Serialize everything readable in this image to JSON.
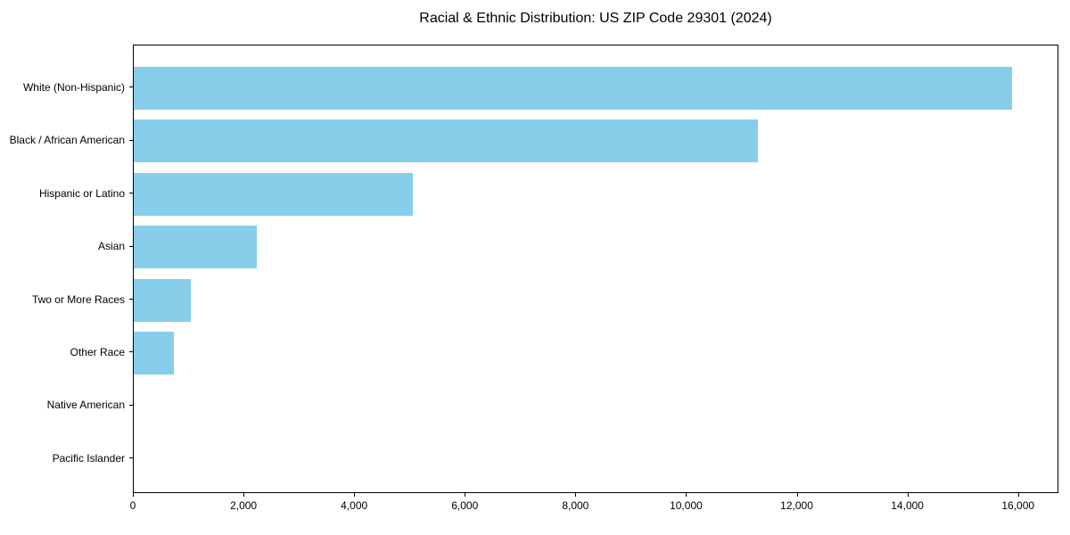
{
  "page": {
    "background_color": "#ffffff",
    "text_color": "#000000"
  },
  "chart_data": {
    "type": "bar",
    "orientation": "horizontal",
    "title": "Racial & Ethnic Distribution: US ZIP Code 29301 (2024)",
    "xlabel": "",
    "ylabel": "",
    "categories": [
      "White (Non-Hispanic)",
      "Black / African American",
      "Hispanic or Latino",
      "Asian",
      "Two or More Races",
      "Other Race",
      "Native American",
      "Pacific Islander"
    ],
    "values": [
      15900,
      11300,
      5060,
      2230,
      1040,
      730,
      0,
      0
    ],
    "xlim": [
      0,
      16730
    ],
    "xticks": [
      0,
      2000,
      4000,
      6000,
      8000,
      10000,
      12000,
      14000,
      16000
    ],
    "xtick_labels": [
      "0",
      "2,000",
      "4,000",
      "6,000",
      "8,000",
      "10,000",
      "12,000",
      "14,000",
      "16,000"
    ],
    "bar_color": "#87CEEB",
    "axis_color": "#000000",
    "grid": false,
    "legend": "none"
  }
}
